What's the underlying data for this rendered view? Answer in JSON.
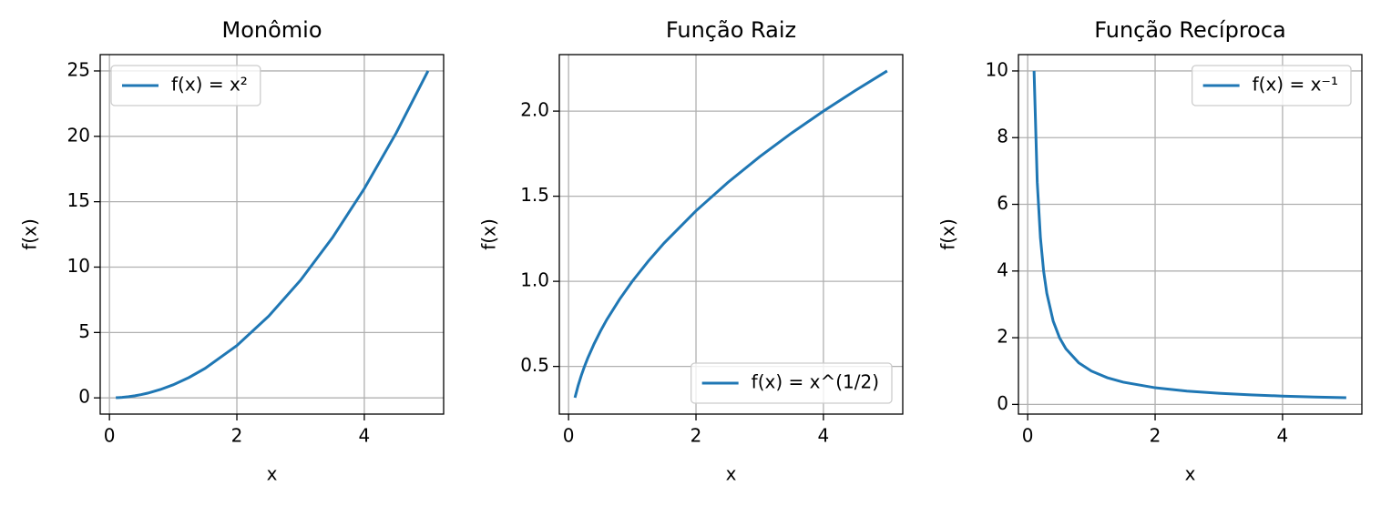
{
  "chart_data": [
    {
      "type": "line",
      "title": "Monômio",
      "xlabel": "x",
      "ylabel": "f(x)",
      "x": [
        0.1,
        0.15,
        0.2,
        0.25,
        0.3,
        0.4,
        0.5,
        0.6,
        0.8,
        1,
        1.25,
        1.5,
        2,
        2.5,
        3,
        3.5,
        4,
        4.5,
        5
      ],
      "series": [
        {
          "name": "f(x) = x²",
          "color": "#1f77b4",
          "values": [
            0.01,
            0.0225,
            0.04,
            0.0625,
            0.09,
            0.16,
            0.25,
            0.36,
            0.64,
            1,
            1.5625,
            2.25,
            4,
            6.25,
            9,
            12.25,
            16,
            20.25,
            25
          ]
        }
      ],
      "xlim": [
        -0.145,
        5.245
      ],
      "ylim": [
        -1.24,
        26.25
      ],
      "xticks": [
        0,
        2,
        4
      ],
      "yticks": [
        0,
        5,
        10,
        15,
        20,
        25
      ],
      "grid": true,
      "legend": "upper-left"
    },
    {
      "type": "line",
      "title": "Função Raiz",
      "xlabel": "x",
      "ylabel": "f(x)",
      "x": [
        0.1,
        0.15,
        0.2,
        0.25,
        0.3,
        0.4,
        0.5,
        0.6,
        0.8,
        1,
        1.25,
        1.5,
        2,
        2.5,
        3,
        3.5,
        4,
        4.5,
        5
      ],
      "series": [
        {
          "name": "f(x) = x^(1/2)",
          "color": "#1f77b4",
          "values": [
            0.316,
            0.387,
            0.447,
            0.5,
            0.548,
            0.632,
            0.707,
            0.775,
            0.894,
            1,
            1.118,
            1.225,
            1.414,
            1.581,
            1.732,
            1.871,
            2,
            2.121,
            2.236
          ]
        }
      ],
      "xlim": [
        -0.145,
        5.245
      ],
      "ylim": [
        0.22,
        2.332
      ],
      "xticks": [
        0,
        2,
        4
      ],
      "yticks": [
        0.5,
        {
          "value": 1,
          "label": "1.0"
        },
        1.5,
        {
          "value": 2,
          "label": "2.0"
        }
      ],
      "grid": true,
      "legend": "lower-right"
    },
    {
      "type": "line",
      "title": "Função Recíproca",
      "xlabel": "x",
      "ylabel": "f(x)",
      "x": [
        0.1,
        0.15,
        0.2,
        0.25,
        0.3,
        0.4,
        0.5,
        0.6,
        0.8,
        1,
        1.25,
        1.5,
        2,
        2.5,
        3,
        3.5,
        4,
        4.5,
        5
      ],
      "series": [
        {
          "name": "f(x) = x⁻¹",
          "color": "#1f77b4",
          "values": [
            10,
            6.667,
            5,
            4,
            3.333,
            2.5,
            2,
            1.667,
            1.25,
            1,
            0.8,
            0.667,
            0.5,
            0.4,
            0.333,
            0.286,
            0.25,
            0.222,
            0.2
          ]
        }
      ],
      "xlim": [
        -0.145,
        5.245
      ],
      "ylim": [
        -0.29,
        10.49
      ],
      "xticks": [
        0,
        2,
        4
      ],
      "yticks": [
        0,
        2,
        4,
        6,
        8,
        10
      ],
      "grid": true,
      "legend": "upper-right"
    }
  ]
}
